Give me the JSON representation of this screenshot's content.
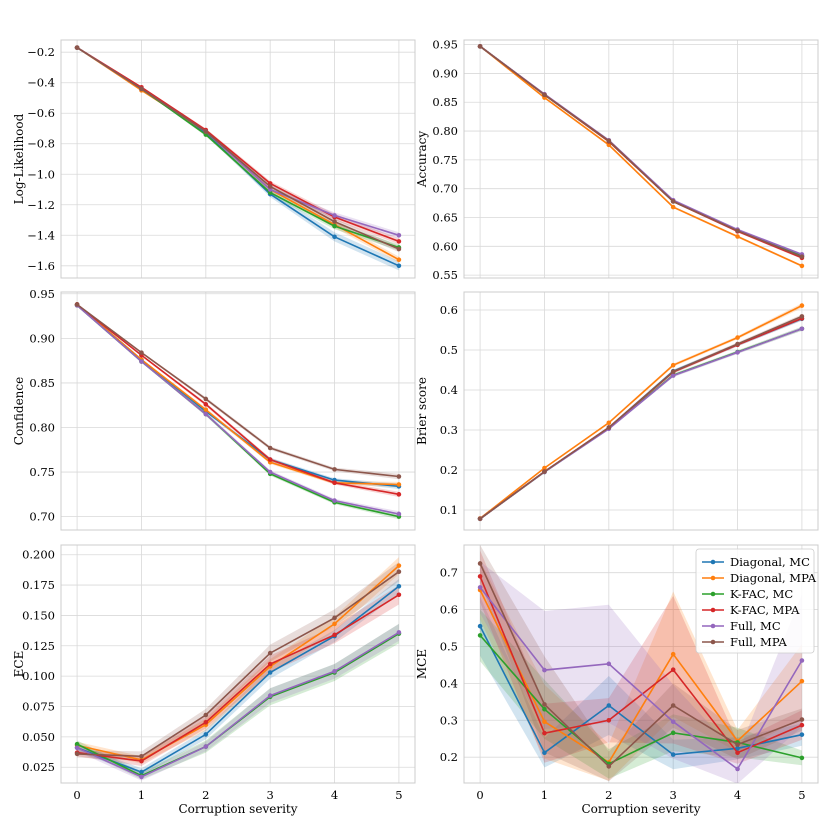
{
  "colors": {
    "Diagonal, MC": "#1f77b4",
    "Diagonal, MPA": "#ff7f0e",
    "K-FAC, MC": "#2ca02c",
    "K-FAC, MPA": "#d62728",
    "Full, MC": "#9467bd",
    "Full, MPA": "#8c564b",
    "grid": "#d9d9d9",
    "spine": "#cccccc"
  },
  "chart_data": [
    {
      "type": "line",
      "ylabel": "Log-Likelihood",
      "xlabel": "",
      "x": [
        0,
        1,
        2,
        3,
        4,
        5
      ],
      "ylim": [
        -1.68,
        -0.12
      ],
      "yticks": [
        -1.6,
        -1.4,
        -1.2,
        -1.0,
        -0.8,
        -0.6,
        -0.4,
        -0.2
      ],
      "ytick_labels": [
        "−1.6",
        "−1.4",
        "−1.2",
        "−1.0",
        "−0.8",
        "−0.6",
        "−0.4",
        "−0.2"
      ],
      "series": [
        {
          "name": "Diagonal, MC",
          "values": [
            -0.17,
            -0.44,
            -0.73,
            -1.13,
            -1.41,
            -1.6
          ],
          "band": [
            0.005,
            0.005,
            0.01,
            0.02,
            0.03,
            0.03
          ]
        },
        {
          "name": "Diagonal, MPA",
          "values": [
            -0.17,
            -0.45,
            -0.72,
            -1.1,
            -1.33,
            -1.56
          ],
          "band": [
            0.005,
            0.005,
            0.01,
            0.015,
            0.02,
            0.02
          ]
        },
        {
          "name": "K-FAC, MC",
          "values": [
            -0.17,
            -0.44,
            -0.74,
            -1.12,
            -1.34,
            -1.48
          ],
          "band": [
            0.005,
            0.005,
            0.01,
            0.015,
            0.02,
            0.02
          ]
        },
        {
          "name": "K-FAC, MPA",
          "values": [
            -0.17,
            -0.43,
            -0.71,
            -1.06,
            -1.28,
            -1.44
          ],
          "band": [
            0.005,
            0.005,
            0.01,
            0.015,
            0.02,
            0.02
          ]
        },
        {
          "name": "Full, MC",
          "values": [
            -0.17,
            -0.44,
            -0.72,
            -1.1,
            -1.27,
            -1.4
          ],
          "band": [
            0.005,
            0.005,
            0.01,
            0.015,
            0.02,
            0.02
          ]
        },
        {
          "name": "Full, MPA",
          "values": [
            -0.17,
            -0.44,
            -0.72,
            -1.08,
            -1.31,
            -1.49
          ],
          "band": [
            0.005,
            0.005,
            0.01,
            0.015,
            0.02,
            0.02
          ]
        }
      ]
    },
    {
      "type": "line",
      "ylabel": "Accuracy",
      "xlabel": "",
      "x": [
        0,
        1,
        2,
        3,
        4,
        5
      ],
      "ylim": [
        0.545,
        0.958
      ],
      "yticks": [
        0.55,
        0.6,
        0.65,
        0.7,
        0.75,
        0.8,
        0.85,
        0.9,
        0.95
      ],
      "ytick_labels": [
        "0.55",
        "0.60",
        "0.65",
        "0.70",
        "0.75",
        "0.80",
        "0.85",
        "0.90",
        "0.95"
      ],
      "series": [
        {
          "name": "Diagonal, MC",
          "values": [
            0.947,
            0.863,
            0.783,
            0.678,
            0.628,
            0.584
          ],
          "band": [
            0.001,
            0.002,
            0.002,
            0.002,
            0.002,
            0.002
          ]
        },
        {
          "name": "Diagonal, MPA",
          "values": [
            0.947,
            0.858,
            0.776,
            0.668,
            0.617,
            0.566
          ],
          "band": [
            0.001,
            0.002,
            0.002,
            0.002,
            0.002,
            0.002
          ]
        },
        {
          "name": "K-FAC, MC",
          "values": [
            0.947,
            0.863,
            0.782,
            0.678,
            0.627,
            0.583
          ],
          "band": [
            0.001,
            0.002,
            0.002,
            0.002,
            0.002,
            0.002
          ]
        },
        {
          "name": "K-FAC, MPA",
          "values": [
            0.947,
            0.863,
            0.782,
            0.678,
            0.626,
            0.58
          ],
          "band": [
            0.001,
            0.002,
            0.002,
            0.002,
            0.002,
            0.002
          ]
        },
        {
          "name": "Full, MC",
          "values": [
            0.947,
            0.864,
            0.784,
            0.68,
            0.629,
            0.586
          ],
          "band": [
            0.001,
            0.002,
            0.002,
            0.002,
            0.002,
            0.002
          ]
        },
        {
          "name": "Full, MPA",
          "values": [
            0.947,
            0.863,
            0.783,
            0.678,
            0.627,
            0.582
          ],
          "band": [
            0.001,
            0.002,
            0.002,
            0.002,
            0.002,
            0.002
          ]
        }
      ]
    },
    {
      "type": "line",
      "ylabel": "Confidence",
      "xlabel": "",
      "x": [
        0,
        1,
        2,
        3,
        4,
        5
      ],
      "ylim": [
        0.685,
        0.952
      ],
      "yticks": [
        0.7,
        0.75,
        0.8,
        0.85,
        0.9,
        0.95
      ],
      "ytick_labels": [
        "0.70",
        "0.75",
        "0.80",
        "0.85",
        "0.90",
        "0.95"
      ],
      "series": [
        {
          "name": "Diagonal, MC",
          "values": [
            0.938,
            0.876,
            0.818,
            0.764,
            0.741,
            0.734
          ],
          "band": [
            0.001,
            0.001,
            0.002,
            0.002,
            0.002,
            0.003
          ]
        },
        {
          "name": "Diagonal, MPA",
          "values": [
            0.938,
            0.876,
            0.82,
            0.761,
            0.738,
            0.736
          ],
          "band": [
            0.001,
            0.001,
            0.002,
            0.002,
            0.002,
            0.003
          ]
        },
        {
          "name": "K-FAC, MC",
          "values": [
            0.937,
            0.874,
            0.815,
            0.748,
            0.716,
            0.7
          ],
          "band": [
            0.001,
            0.001,
            0.002,
            0.002,
            0.002,
            0.003
          ]
        },
        {
          "name": "K-FAC, MPA",
          "values": [
            0.938,
            0.881,
            0.826,
            0.764,
            0.738,
            0.725
          ],
          "band": [
            0.001,
            0.001,
            0.002,
            0.002,
            0.002,
            0.003
          ]
        },
        {
          "name": "Full, MC",
          "values": [
            0.937,
            0.874,
            0.815,
            0.75,
            0.718,
            0.703
          ],
          "band": [
            0.001,
            0.001,
            0.002,
            0.002,
            0.002,
            0.003
          ]
        },
        {
          "name": "Full, MPA",
          "values": [
            0.938,
            0.884,
            0.832,
            0.777,
            0.753,
            0.745
          ],
          "band": [
            0.001,
            0.001,
            0.002,
            0.002,
            0.002,
            0.003
          ]
        }
      ]
    },
    {
      "type": "line",
      "ylabel": "Brier score",
      "xlabel": "",
      "x": [
        0,
        1,
        2,
        3,
        4,
        5
      ],
      "ylim": [
        0.05,
        0.645
      ],
      "yticks": [
        0.1,
        0.2,
        0.3,
        0.4,
        0.5,
        0.6
      ],
      "ytick_labels": [
        "0.1",
        "0.2",
        "0.3",
        "0.4",
        "0.5",
        "0.6"
      ],
      "series": [
        {
          "name": "Diagonal, MC",
          "values": [
            0.078,
            0.196,
            0.306,
            0.447,
            0.513,
            0.578
          ],
          "band": [
            0.001,
            0.002,
            0.003,
            0.004,
            0.004,
            0.005
          ]
        },
        {
          "name": "Diagonal, MPA",
          "values": [
            0.079,
            0.205,
            0.318,
            0.462,
            0.531,
            0.611
          ],
          "band": [
            0.001,
            0.002,
            0.003,
            0.004,
            0.004,
            0.006
          ]
        },
        {
          "name": "K-FAC, MC",
          "values": [
            0.078,
            0.195,
            0.304,
            0.437,
            0.495,
            0.553
          ],
          "band": [
            0.001,
            0.002,
            0.003,
            0.004,
            0.004,
            0.005
          ]
        },
        {
          "name": "K-FAC, MPA",
          "values": [
            0.078,
            0.196,
            0.306,
            0.445,
            0.513,
            0.579
          ],
          "band": [
            0.001,
            0.002,
            0.003,
            0.004,
            0.004,
            0.005
          ]
        },
        {
          "name": "Full, MC",
          "values": [
            0.078,
            0.195,
            0.303,
            0.436,
            0.494,
            0.553
          ],
          "band": [
            0.001,
            0.002,
            0.003,
            0.004,
            0.004,
            0.005
          ]
        },
        {
          "name": "Full, MPA",
          "values": [
            0.078,
            0.196,
            0.306,
            0.446,
            0.515,
            0.584
          ],
          "band": [
            0.001,
            0.002,
            0.003,
            0.004,
            0.004,
            0.005
          ]
        }
      ]
    },
    {
      "type": "line",
      "ylabel": "ECE",
      "xlabel": "Corruption severity",
      "x": [
        0,
        1,
        2,
        3,
        4,
        5
      ],
      "ylim": [
        0.012,
        0.208
      ],
      "yticks": [
        0.025,
        0.05,
        0.075,
        0.1,
        0.125,
        0.15,
        0.175,
        0.2
      ],
      "ytick_labels": [
        "0.025",
        "0.050",
        "0.075",
        "0.100",
        "0.125",
        "0.150",
        "0.175",
        "0.200"
      ],
      "series": [
        {
          "name": "Diagonal, MC",
          "values": [
            0.041,
            0.021,
            0.052,
            0.103,
            0.133,
            0.174
          ],
          "band": [
            0.003,
            0.003,
            0.004,
            0.005,
            0.005,
            0.006
          ]
        },
        {
          "name": "Diagonal, MPA",
          "values": [
            0.043,
            0.031,
            0.06,
            0.108,
            0.143,
            0.191
          ],
          "band": [
            0.003,
            0.003,
            0.005,
            0.006,
            0.006,
            0.007
          ]
        },
        {
          "name": "K-FAC, MC",
          "values": [
            0.044,
            0.018,
            0.042,
            0.083,
            0.103,
            0.135
          ],
          "band": [
            0.003,
            0.003,
            0.005,
            0.007,
            0.007,
            0.008
          ]
        },
        {
          "name": "K-FAC, MPA",
          "values": [
            0.037,
            0.03,
            0.062,
            0.11,
            0.134,
            0.167
          ],
          "band": [
            0.003,
            0.004,
            0.005,
            0.007,
            0.007,
            0.008
          ]
        },
        {
          "name": "Full, MC",
          "values": [
            0.041,
            0.017,
            0.042,
            0.084,
            0.104,
            0.136
          ],
          "band": [
            0.003,
            0.003,
            0.004,
            0.006,
            0.006,
            0.007
          ]
        },
        {
          "name": "Full, MPA",
          "values": [
            0.036,
            0.034,
            0.068,
            0.119,
            0.148,
            0.186
          ],
          "band": [
            0.003,
            0.004,
            0.005,
            0.007,
            0.007,
            0.008
          ]
        }
      ]
    },
    {
      "type": "line",
      "ylabel": "MCE",
      "xlabel": "Corruption severity",
      "x": [
        0,
        1,
        2,
        3,
        4,
        5
      ],
      "ylim": [
        0.13,
        0.775
      ],
      "yticks": [
        0.2,
        0.3,
        0.4,
        0.5,
        0.6,
        0.7
      ],
      "ytick_labels": [
        "0.2",
        "0.3",
        "0.4",
        "0.5",
        "0.6",
        "0.7"
      ],
      "legend": "top-right",
      "legend_entries": [
        "Diagonal, MC",
        "Diagonal, MPA",
        "K-FAC, MC",
        "K-FAC, MPA",
        "Full, MC",
        "Full, MPA"
      ],
      "series": [
        {
          "name": "Diagonal, MC",
          "values": [
            0.555,
            0.212,
            0.34,
            0.207,
            0.224,
            0.261
          ],
          "band": [
            0.08,
            0.04,
            0.08,
            0.04,
            0.03,
            0.03
          ]
        },
        {
          "name": "Diagonal, MPA",
          "values": [
            0.653,
            0.296,
            0.186,
            0.479,
            0.244,
            0.406
          ],
          "band": [
            0.08,
            0.1,
            0.05,
            0.17,
            0.03,
            0.1
          ]
        },
        {
          "name": "K-FAC, MC",
          "values": [
            0.53,
            0.33,
            0.182,
            0.266,
            0.24,
            0.198
          ],
          "band": [
            0.07,
            0.08,
            0.04,
            0.05,
            0.04,
            0.02
          ]
        },
        {
          "name": "K-FAC, MPA",
          "values": [
            0.69,
            0.265,
            0.3,
            0.437,
            0.212,
            0.287
          ],
          "band": [
            0.07,
            0.08,
            0.06,
            0.2,
            0.03,
            0.04
          ]
        },
        {
          "name": "Full, MC",
          "values": [
            0.66,
            0.436,
            0.453,
            0.296,
            0.168,
            0.462
          ],
          "band": [
            0.07,
            0.16,
            0.16,
            0.1,
            0.04,
            0.18
          ]
        },
        {
          "name": "Full, MPA",
          "values": [
            0.725,
            0.343,
            0.175,
            0.34,
            0.234,
            0.302
          ],
          "band": [
            0.05,
            0.13,
            0.04,
            0.06,
            0.04,
            0.03
          ]
        }
      ]
    }
  ]
}
